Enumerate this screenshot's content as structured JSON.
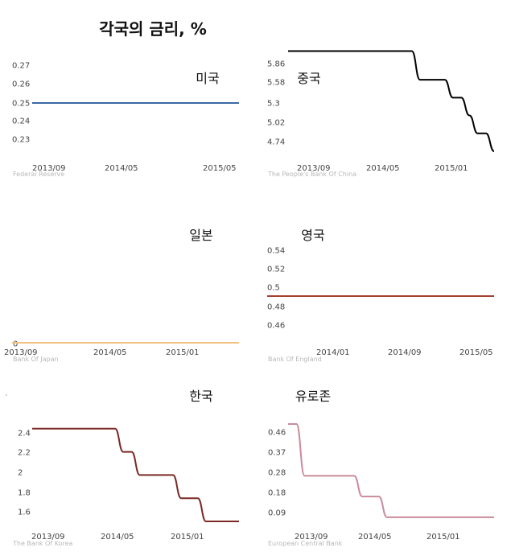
{
  "page": {
    "title": "각국의 금리, %"
  },
  "chart_data": [
    {
      "type": "line",
      "title": "미국",
      "source": "Federal Reserve",
      "color": "#3a6aa3",
      "yticks": [
        "0.27",
        "0.26",
        "0.25",
        "0.24",
        "0.23"
      ],
      "ylim": [
        0.225,
        0.275
      ],
      "xticks": [
        "2013/09",
        "2014/05",
        "2015/05"
      ],
      "series": [
        {
          "x": [
            "2013/09",
            "2015/10"
          ],
          "values": [
            0.25,
            0.25
          ]
        }
      ]
    },
    {
      "type": "line",
      "title": "중국",
      "source": "The People's Bank Of China",
      "color": "#000000",
      "yticks": [
        "5.86",
        "5.58",
        "5.3",
        "5.02",
        "4.74"
      ],
      "ylim": [
        4.6,
        5.95
      ],
      "xticks": [
        "2013/09",
        "2014/05",
        "2015/01"
      ],
      "series": [
        {
          "x": [
            "2013/07",
            "2014/11",
            "2015/03",
            "2015/05",
            "2015/06",
            "2015/08"
          ],
          "values": [
            6.0,
            5.6,
            5.35,
            5.1,
            4.85,
            4.6
          ]
        }
      ]
    },
    {
      "type": "line",
      "title": "일본",
      "source": "Bank Of Japan",
      "color": "#f2c083",
      "yticks": [
        "0"
      ],
      "ylim": [
        0,
        0.5
      ],
      "xticks": [
        "2013/09",
        "2014/05",
        "2015/01"
      ],
      "series": [
        {
          "x": [
            "2013/09",
            "2015/10"
          ],
          "values": [
            0,
            0
          ]
        }
      ]
    },
    {
      "type": "line",
      "title": "영국",
      "source": "Bank Of England",
      "color": "#a3402f",
      "yticks": [
        "0.54",
        "0.52",
        "0.5",
        "0.48",
        "0.46"
      ],
      "ylim": [
        0.445,
        0.555
      ],
      "xticks": [
        "2014/01",
        "2014/09",
        "2015/05"
      ],
      "series": [
        {
          "x": [
            "2013/09",
            "2015/10"
          ],
          "values": [
            0.5,
            0.5
          ]
        }
      ]
    },
    {
      "type": "line",
      "title": "한국",
      "source": "The Bank Of Korea",
      "color": "#7a2a24",
      "yticks": [
        "2.4",
        "2.2",
        "2",
        "1.8",
        "1.6"
      ],
      "ylim": [
        1.5,
        2.55
      ],
      "xticks": [
        "2013/09",
        "2014/05",
        "2015/01"
      ],
      "series": [
        {
          "x": [
            "2013/09",
            "2014/08",
            "2014/10",
            "2015/03",
            "2015/06",
            "2015/10"
          ],
          "values": [
            2.5,
            2.25,
            2.0,
            1.75,
            1.5,
            1.5
          ]
        }
      ]
    },
    {
      "type": "line",
      "title": "유로존",
      "source": "European Central Bank",
      "color": "#c98b9a",
      "yticks": [
        "0.46",
        "0.37",
        "0.28",
        "0.18",
        "0.09"
      ],
      "ylim": [
        0.03,
        0.5
      ],
      "xticks": [
        "2013/09",
        "2014/05",
        "2015/01"
      ],
      "series": [
        {
          "x": [
            "2013/09",
            "2013/11",
            "2014/06",
            "2014/09",
            "2015/10"
          ],
          "values": [
            0.5,
            0.25,
            0.15,
            0.05,
            0.05
          ]
        }
      ]
    }
  ]
}
